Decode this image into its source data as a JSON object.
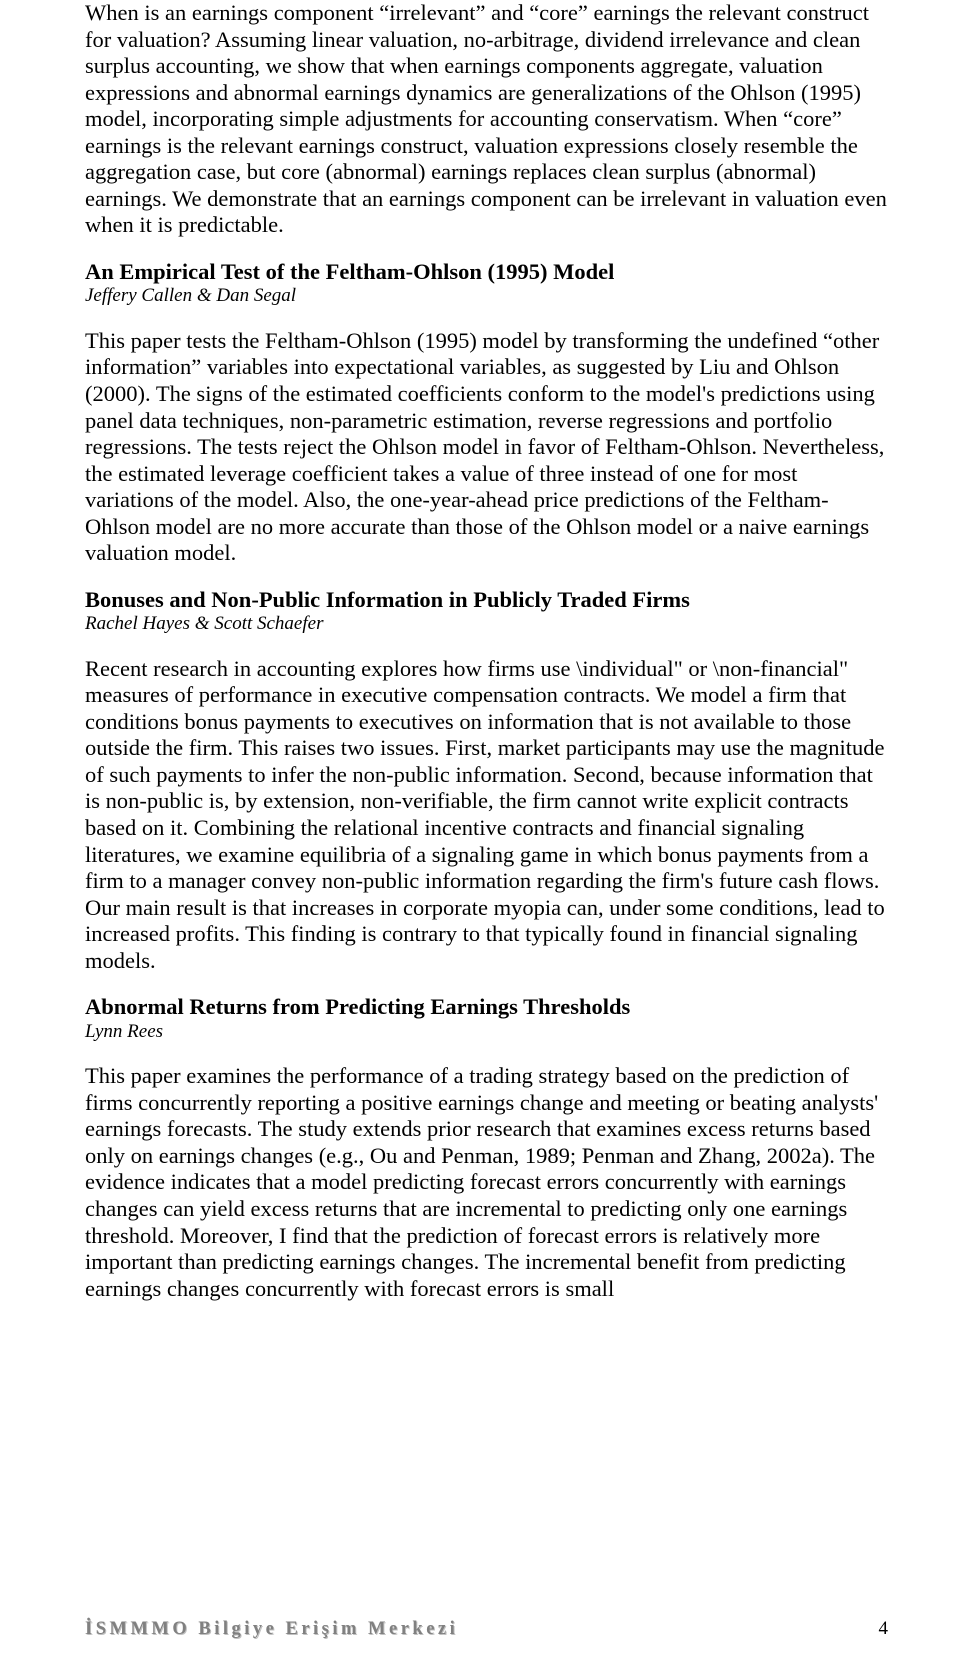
{
  "intro_para": "When is an earnings component “irrelevant” and “core” earnings the relevant construct for valuation? Assuming linear valuation, no-arbitrage, dividend irrelevance and clean surplus accounting, we show that when earnings components aggregate, valuation expressions and abnormal earnings dynamics are generalizations of the Ohlson (1995) model, incorporating simple adjustments for accounting conservatism. When “core” earnings is the relevant earnings construct, valuation expressions closely resemble the aggregation case, but core (abnormal) earnings replaces clean surplus (abnormal) earnings. We demonstrate that an earnings component can be irrelevant in valuation even when it is predictable.",
  "section1": {
    "title": "An Empirical Test of the Feltham-Ohlson (1995) Model",
    "authors": "Jeffery Callen & Dan Segal",
    "body": "This paper tests the Feltham-Ohlson (1995) model by transforming the undefined “other information” variables into expectational variables, as suggested by Liu and Ohlson (2000). The signs of the estimated coefficients conform to the model's predictions using panel data techniques, non-parametric estimation, reverse regressions and portfolio regressions. The tests reject the Ohlson model in favor of Feltham-Ohlson. Nevertheless, the estimated leverage coefficient takes a value of three instead of one for most variations of the model. Also, the one-year-ahead price predictions of the Feltham-Ohlson model are no more accurate than those of the Ohlson model or a naive earnings valuation model."
  },
  "section2": {
    "title": "Bonuses and Non-Public Information in Publicly Traded Firms",
    "authors": "Rachel Hayes & Scott Schaefer",
    "body": "Recent research in accounting explores how firms use \\individual\" or \\non-financial\" measures of performance in executive compensation contracts. We model a firm that conditions bonus payments to executives on information that is not available to those outside the firm. This raises two issues. First, market participants may use the magnitude of such payments to infer the non-public information. Second, because information that is non-public is, by extension, non-verifiable, the firm cannot write explicit contracts based on it. Combining the relational incentive contracts and financial signaling literatures, we examine equilibria of a signaling game in which bonus payments from a firm to a manager convey non-public information regarding the firm's future cash flows. Our main result is that increases in corporate myopia can, under some conditions, lead to increased profits. This finding is contrary to that typically found in financial signaling models."
  },
  "section3": {
    "title": "Abnormal Returns from Predicting Earnings Thresholds",
    "authors": "Lynn Rees",
    "body": "This paper examines the performance of a trading strategy based on the prediction of firms concurrently reporting a positive earnings change and meeting or beating analysts' earnings forecasts.  The study extends prior research that examines excess returns based only on earnings changes (e.g., Ou and Penman, 1989; Penman and Zhang, 2002a).  The evidence indicates that a model predicting forecast errors concurrently with earnings changes can yield excess returns that are incremental to predicting only one earnings threshold.  Moreover, I find that the prediction of forecast errors is relatively more important than predicting earnings changes.  The incremental benefit from predicting earnings changes concurrently with forecast errors is small"
  },
  "footer": {
    "text": "İSMMMO Bilgiye Erişim Merkezi",
    "page": "4"
  }
}
